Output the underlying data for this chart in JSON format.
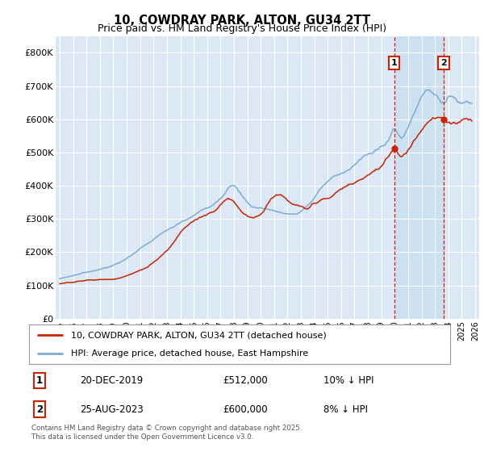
{
  "title": "10, COWDRAY PARK, ALTON, GU34 2TT",
  "subtitle": "Price paid vs. HM Land Registry's House Price Index (HPI)",
  "red_line_label": "10, COWDRAY PARK, ALTON, GU34 2TT (detached house)",
  "blue_line_label": "HPI: Average price, detached house, East Hampshire",
  "sale1_date": "20-DEC-2019",
  "sale1_price": "£512,000",
  "sale1_hpi": "10% ↓ HPI",
  "sale2_date": "25-AUG-2023",
  "sale2_price": "£600,000",
  "sale2_hpi": "8% ↓ HPI",
  "footnote": "Contains HM Land Registry data © Crown copyright and database right 2025.\nThis data is licensed under the Open Government Licence v3.0.",
  "ylim": [
    0,
    850000
  ],
  "yticks": [
    0,
    100000,
    200000,
    300000,
    400000,
    500000,
    600000,
    700000,
    800000
  ],
  "ytick_labels": [
    "£0",
    "£100K",
    "£200K",
    "£300K",
    "£400K",
    "£500K",
    "£600K",
    "£700K",
    "£800K"
  ],
  "background_color": "#ffffff",
  "plot_bg_color": "#dce8f5",
  "grid_color": "#ffffff",
  "red_color": "#cc2200",
  "blue_color": "#7aadd4",
  "shade_color": "#c8dff0",
  "sale1_year": 2019.97,
  "sale2_year": 2023.65,
  "sale1_price_val": 512000,
  "sale2_price_val": 600000,
  "xlim_left": 1994.7,
  "xlim_right": 2026.3
}
